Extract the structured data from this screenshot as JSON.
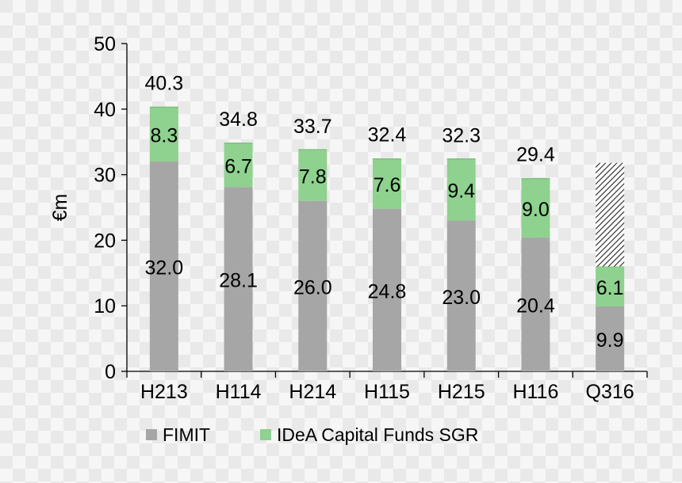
{
  "chart_data": {
    "type": "bar",
    "stacked": true,
    "title": "",
    "xlabel": "",
    "ylabel": "€m",
    "ylim": [
      0,
      50
    ],
    "yticks": [
      0,
      10,
      20,
      30,
      40,
      50
    ],
    "categories": [
      "H213",
      "H114",
      "H214",
      "H115",
      "H215",
      "H116",
      "Q316"
    ],
    "series": [
      {
        "name": "FIMIT",
        "color": "#a6a6a6",
        "values": [
          32.0,
          28.1,
          26.0,
          24.8,
          23.0,
          20.4,
          9.9
        ],
        "labels": [
          "32.0",
          "28.1",
          "26.0",
          "24.8",
          "23.0",
          "20.4",
          "9.9"
        ]
      },
      {
        "name": "IDeA Capital Funds SGR",
        "color": "#8fd18f",
        "values": [
          8.3,
          6.7,
          7.8,
          7.6,
          9.4,
          9.0,
          6.1
        ],
        "labels": [
          "8.3",
          "6.7",
          "7.8",
          "7.6",
          "9.4",
          "9.0",
          "6.1"
        ]
      }
    ],
    "totals": [
      40.3,
      34.8,
      33.7,
      32.4,
      32.3,
      29.4,
      null
    ],
    "total_labels": [
      "40.3",
      "34.8",
      "33.7",
      "32.4",
      "32.3",
      "29.4",
      ""
    ],
    "projection": {
      "category": "Q316",
      "from": 16.0,
      "to": 31.8,
      "pattern": "hatched"
    },
    "legend_position": "bottom"
  }
}
